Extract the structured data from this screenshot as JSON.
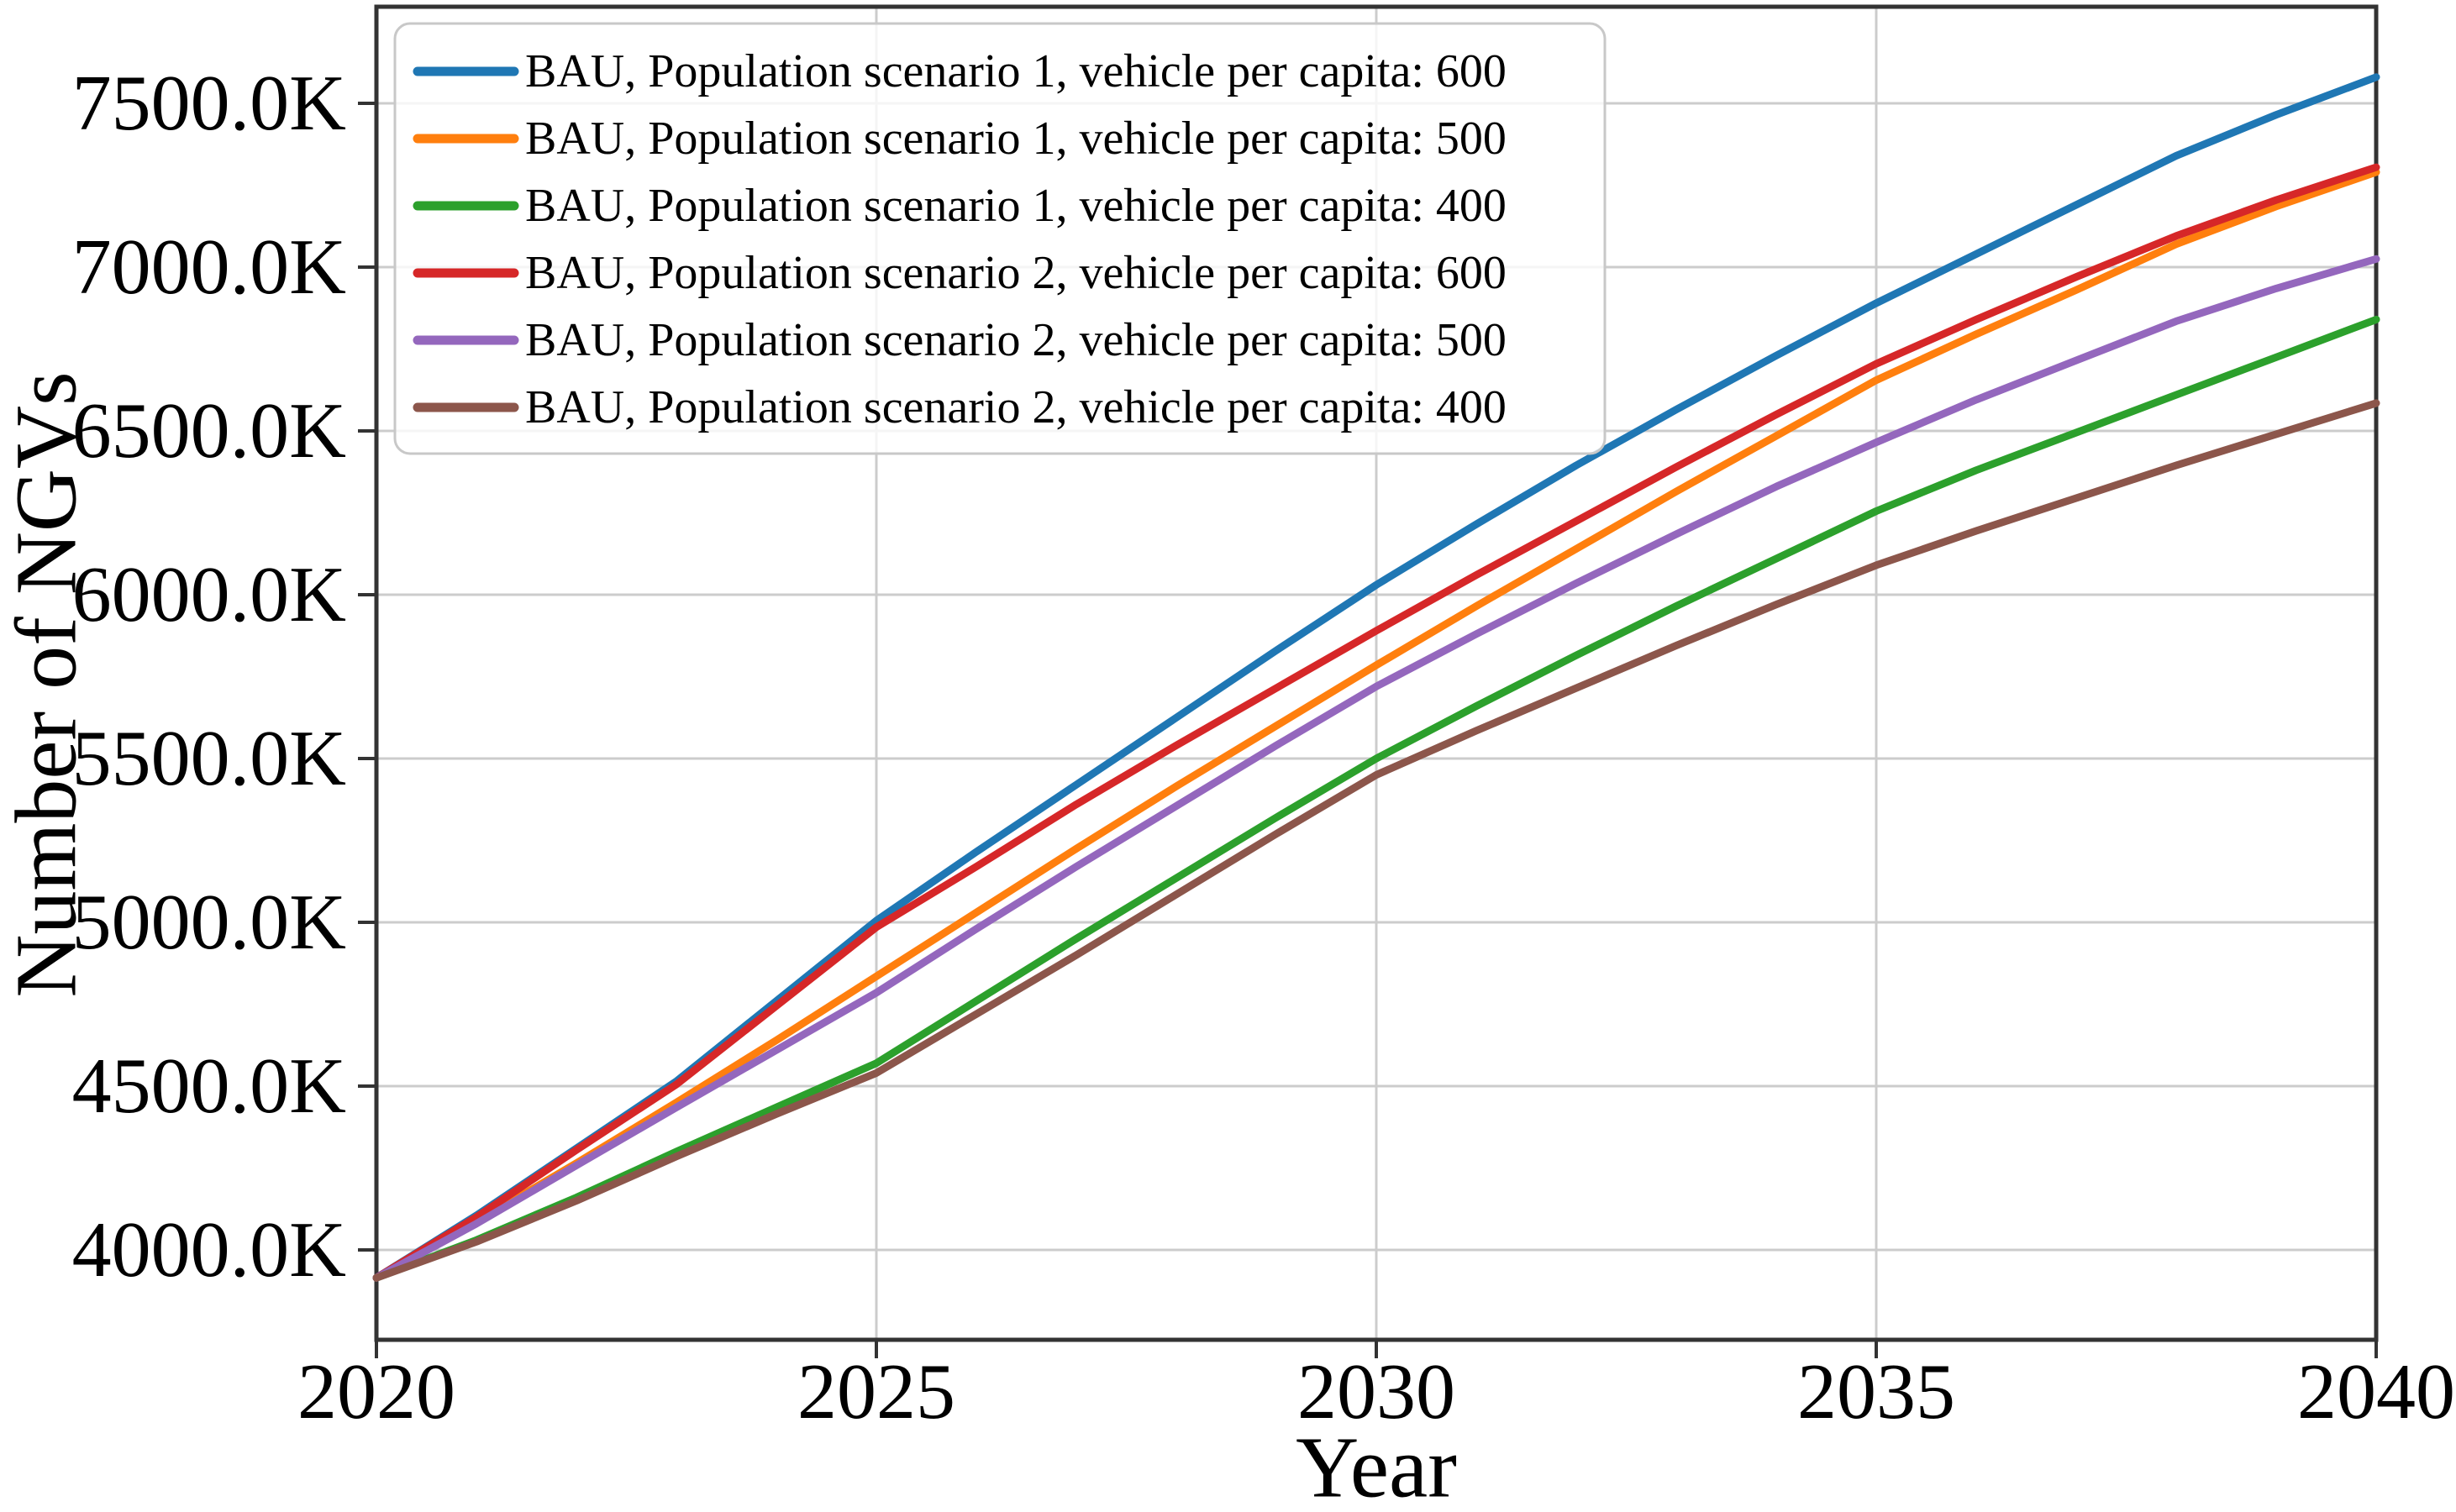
{
  "page": {
    "background": "#ffffff"
  },
  "chart_data": {
    "type": "line",
    "title": "",
    "xlabel": "Year",
    "ylabel": "Number of NGVs",
    "grid": true,
    "legend_position": "upper-left",
    "xlim": [
      2020,
      2040
    ],
    "ylim": [
      3725,
      7790
    ],
    "xticks": {
      "values": [
        2020,
        2025,
        2030,
        2035,
        2040
      ],
      "labels": [
        "2020",
        "2025",
        "2030",
        "2035",
        "2040"
      ]
    },
    "yticks": {
      "values": [
        7500,
        7000,
        6500,
        6000,
        5500,
        5000,
        4500,
        4000
      ],
      "labels": [
        "7500.0K",
        "7000.0K",
        "6500.0K",
        "6000.0K",
        "5500.0K",
        "5000.0K",
        "4500.0K",
        "4000.0K"
      ]
    },
    "unit": "thousand vehicles (K)",
    "x": [
      2020,
      2021,
      2022,
      2023,
      2024,
      2025,
      2026,
      2027,
      2028,
      2029,
      2030,
      2031,
      2032,
      2033,
      2034,
      2035,
      2036,
      2037,
      2038,
      2039,
      2040
    ],
    "series": [
      {
        "name": "BAU, Population scenario 1, vehicle per capita: 600",
        "color": "#1f77b4",
        "values": [
          3915,
          4105,
          4310,
          4515,
          4760,
          5005,
          5215,
          5420,
          5625,
          5830,
          6030,
          6215,
          6395,
          6565,
          6730,
          6890,
          7040,
          7190,
          7340,
          7465,
          7580
        ]
      },
      {
        "name": "BAU, Population scenario 1, vehicle per capita: 500",
        "color": "#ff7f0e",
        "values": [
          3915,
          4085,
          4265,
          4450,
          4640,
          4835,
          5030,
          5225,
          5415,
          5600,
          5785,
          5965,
          6140,
          6315,
          6485,
          6655,
          6795,
          6930,
          7070,
          7185,
          7290
        ]
      },
      {
        "name": "BAU, Population scenario 1, vehicle per capita: 400",
        "color": "#2ca02c",
        "values": [
          3915,
          4030,
          4160,
          4300,
          4435,
          4570,
          4760,
          4950,
          5135,
          5320,
          5500,
          5660,
          5815,
          5965,
          6110,
          6255,
          6380,
          6495,
          6610,
          6725,
          6840
        ]
      },
      {
        "name": "BAU, Population scenario 2, vehicle per capita: 600",
        "color": "#d62728",
        "values": [
          3915,
          4100,
          4305,
          4505,
          4745,
          4985,
          5170,
          5360,
          5540,
          5715,
          5890,
          6060,
          6225,
          6390,
          6550,
          6705,
          6840,
          6970,
          7095,
          7205,
          7305
        ]
      },
      {
        "name": "BAU, Population scenario 2, vehicle per capita: 500",
        "color": "#9467bd",
        "values": [
          3915,
          4080,
          4258,
          4435,
          4610,
          4785,
          4980,
          5170,
          5355,
          5540,
          5720,
          5880,
          6035,
          6185,
          6330,
          6465,
          6595,
          6715,
          6835,
          6935,
          7025
        ]
      },
      {
        "name": "BAU, Population scenario 2, vehicle per capita: 400",
        "color": "#8c564b",
        "values": [
          3915,
          4025,
          4150,
          4285,
          4415,
          4540,
          4720,
          4900,
          5085,
          5270,
          5450,
          5585,
          5715,
          5845,
          5970,
          6090,
          6195,
          6295,
          6395,
          6490,
          6585
        ]
      }
    ],
    "style": {
      "grid_color": "#cccccc",
      "spine_color": "#333333",
      "legend_border_color": "#c8c8c8",
      "legend_fill_opacity": 0.8,
      "line_width": 9
    }
  }
}
